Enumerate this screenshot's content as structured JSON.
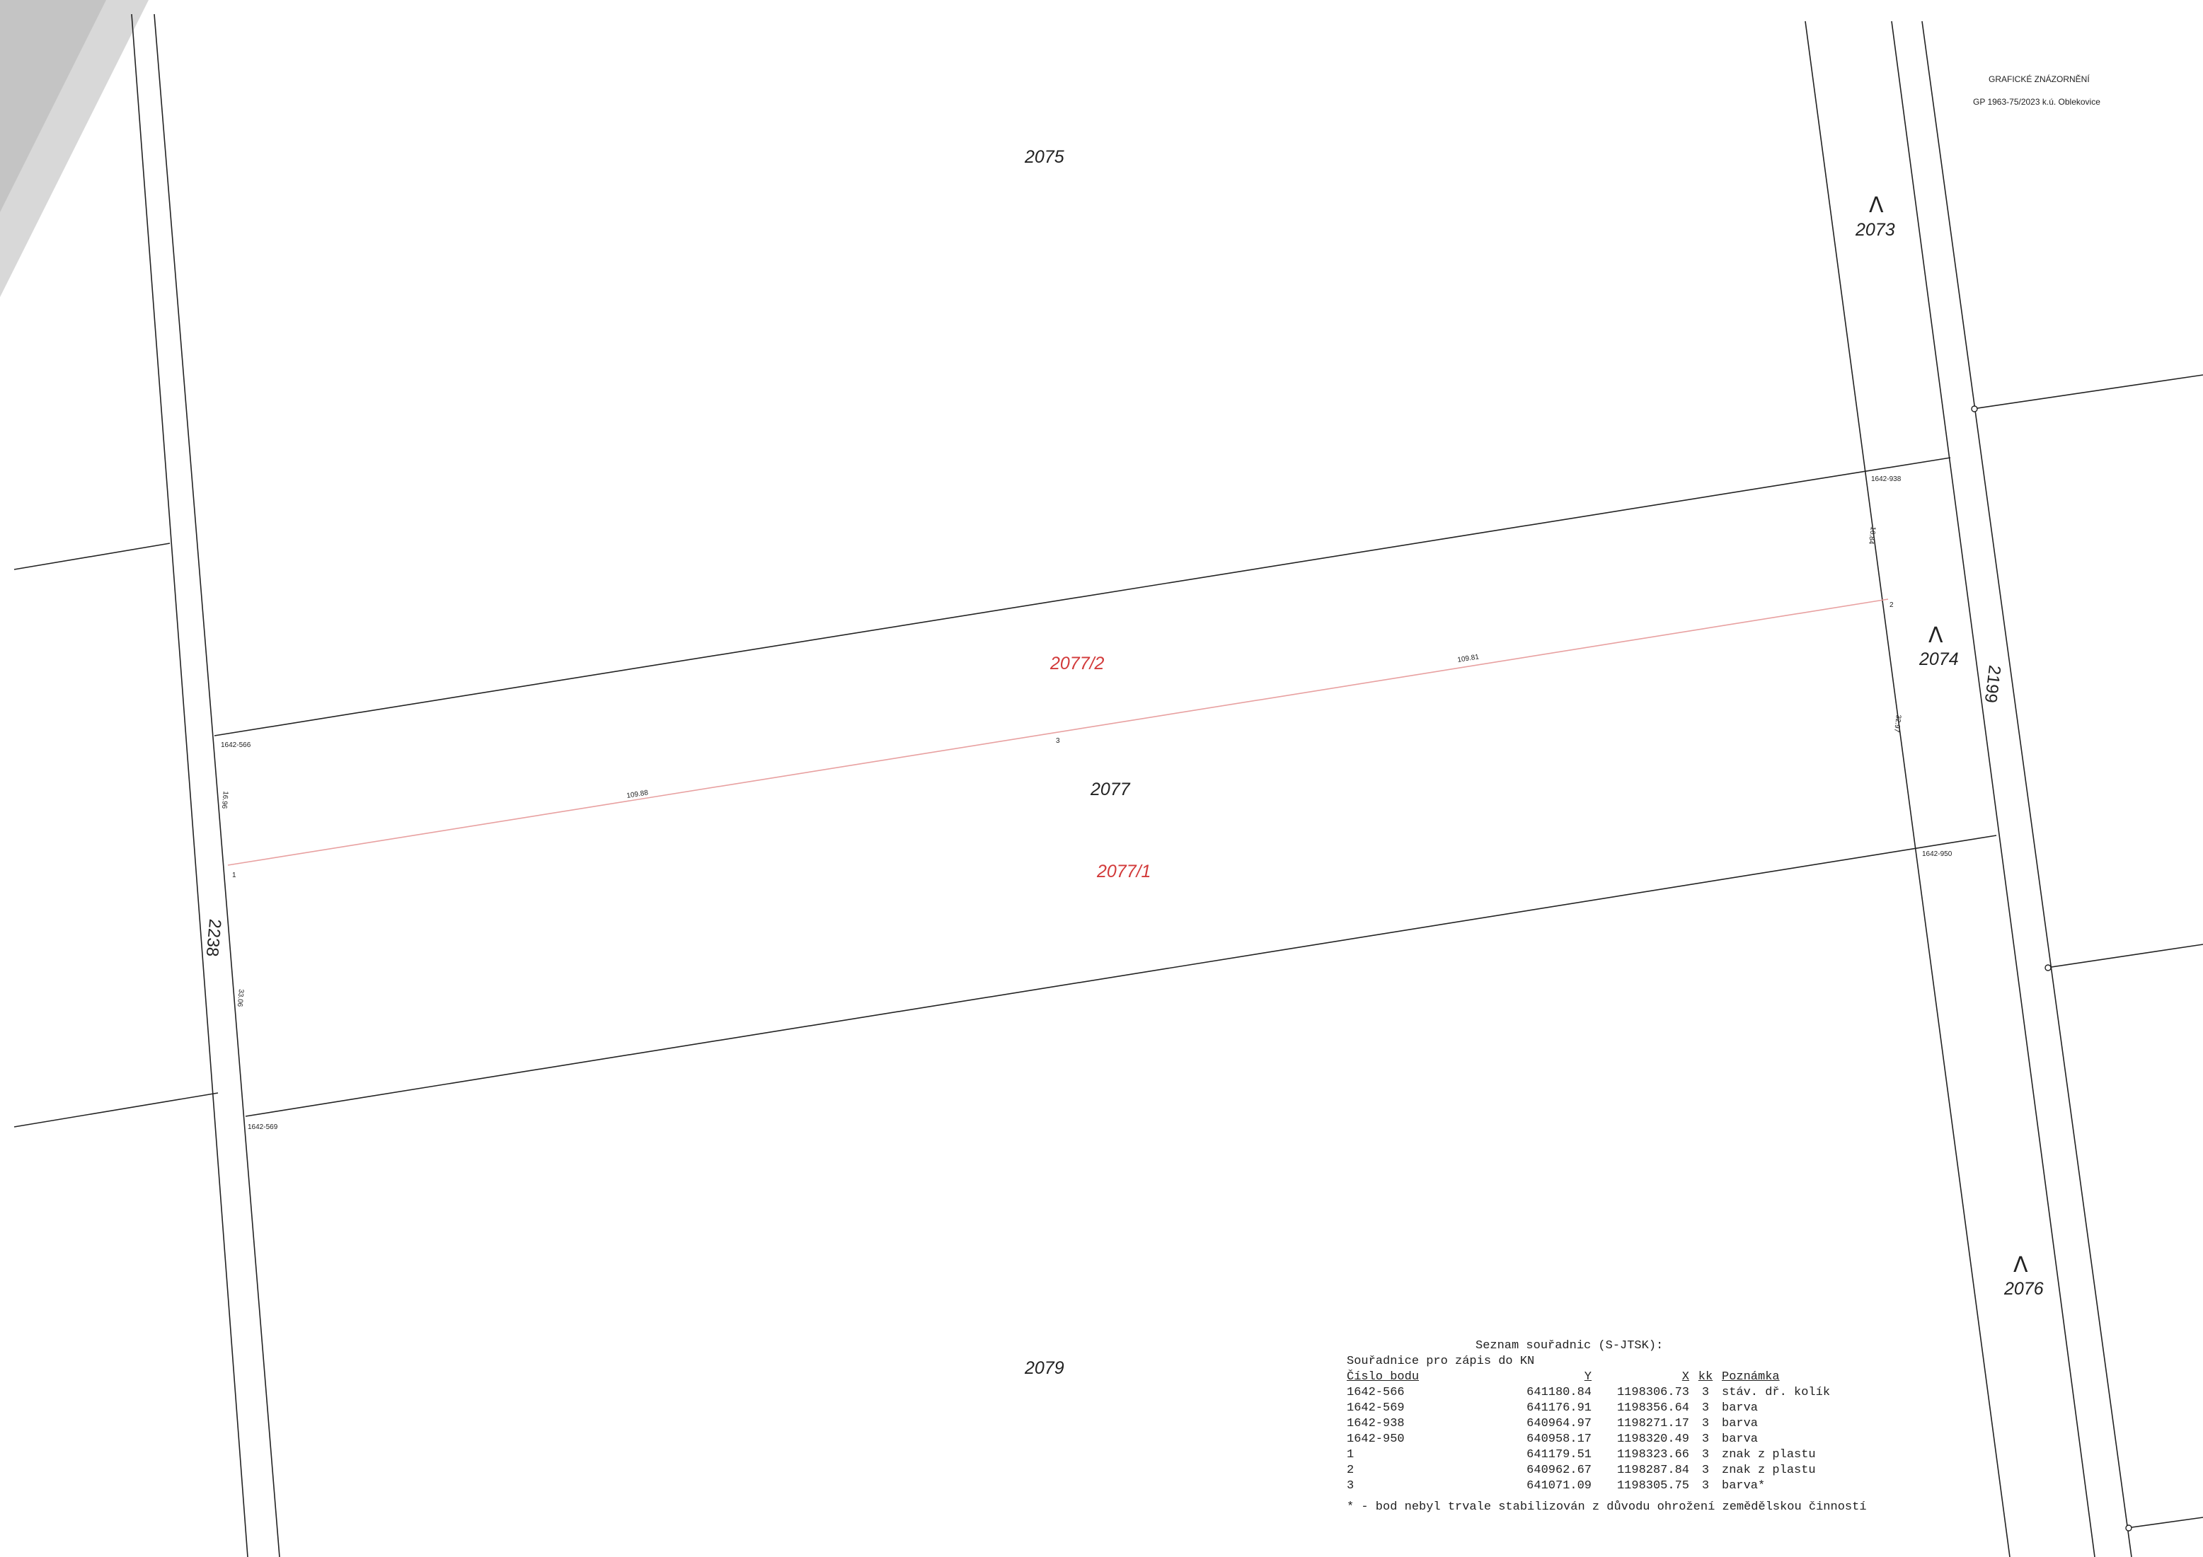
{
  "header": {
    "title": "GRAFICKÉ ZNÁZORNĚNÍ",
    "subtitle": "GP 1963-75/2023 k.ú. Oblekovice"
  },
  "parcels": {
    "p2075": "2075",
    "p2073": "2073",
    "p2074": "2074",
    "p2076": "2076",
    "p2077": "2077",
    "p2079": "2079",
    "p2077_1": "2077/1",
    "p2077_2": "2077/2"
  },
  "streets": {
    "s2238": "2238",
    "s2199": "2199"
  },
  "points": {
    "pt1642_938": "1642-938",
    "pt1642_566": "1642-566",
    "pt1642_950": "1642-950",
    "pt1642_569": "1642-569",
    "pt1": "1",
    "pt2": "2",
    "pt3": "3"
  },
  "dimensions": {
    "d1": "109.81",
    "d2": "109.88",
    "d3": "16.96",
    "d4": "33.06",
    "d5": "16.84",
    "d6": "32.97"
  },
  "direction_mark": "Λ",
  "coordinate_table": {
    "title": "Seznam souřadnic (S-JTSK):",
    "subtitle": "Souřadnice pro zápis do KN",
    "columns": [
      "Číslo bodu",
      "Y",
      "X",
      "kk",
      "Poznámka"
    ],
    "rows": [
      [
        "1642-566",
        "641180.84",
        "1198306.73",
        "3",
        "stáv. dř. kolík"
      ],
      [
        "1642-569",
        "641176.91",
        "1198356.64",
        "3",
        "barva"
      ],
      [
        "1642-938",
        "640964.97",
        "1198271.17",
        "3",
        "barva"
      ],
      [
        "1642-950",
        "640958.17",
        "1198320.49",
        "3",
        "barva"
      ],
      [
        "1",
        "641179.51",
        "1198323.66",
        "3",
        "znak z plastu"
      ],
      [
        "2",
        "640962.67",
        "1198287.84",
        "3",
        "znak z plastu"
      ],
      [
        "3",
        "641071.09",
        "1198305.75",
        "3",
        "barva*"
      ]
    ],
    "note": "* - bod nebyl trvale stabilizován z důvodu ohrožení zemědělskou činností"
  }
}
